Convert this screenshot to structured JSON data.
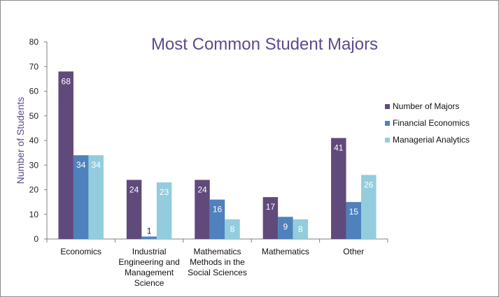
{
  "chart_data": {
    "type": "bar",
    "title": "Most Common Student Majors",
    "ylabel": "Number of Students",
    "xlabel": "",
    "ylim": [
      0,
      80
    ],
    "yticks": [
      0,
      10,
      20,
      30,
      40,
      50,
      60,
      70,
      80
    ],
    "grid": false,
    "legend_position": "right",
    "categories": [
      [
        "Economics"
      ],
      [
        "Industrial",
        "Engineering and",
        "Management",
        "Science"
      ],
      [
        "Mathematics",
        "Methods in the",
        "Social Sciences"
      ],
      [
        "Mathematics"
      ],
      [
        "Other"
      ]
    ],
    "series": [
      {
        "name": "Number of Majors",
        "color": "#604a7b",
        "label_color": "#ffffff",
        "values": [
          68,
          24,
          24,
          17,
          41
        ]
      },
      {
        "name": "Financial Economics",
        "color": "#4f81bd",
        "label_color": "#ffffff",
        "values": [
          34,
          1,
          16,
          9,
          15
        ]
      },
      {
        "name": "Managerial Analytics",
        "color": "#93cddd",
        "label_color": "#ffffff",
        "values": [
          34,
          23,
          8,
          8,
          26
        ]
      }
    ],
    "colors": {
      "title": "#5f4a8b",
      "ylabel": "#5f4a8b",
      "axis": "#808080"
    }
  }
}
